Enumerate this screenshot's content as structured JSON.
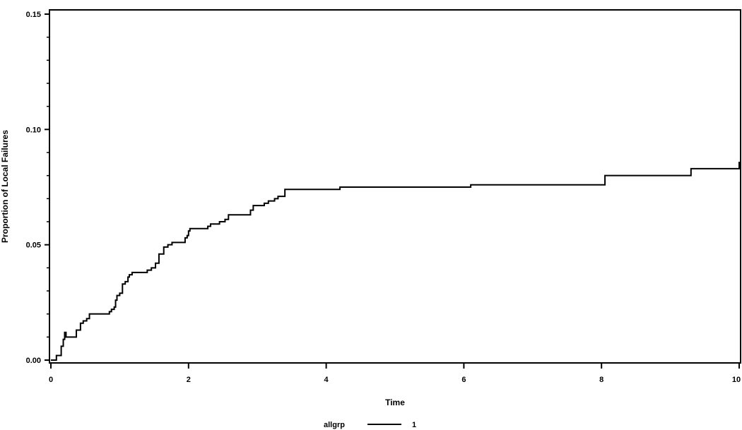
{
  "chart_data": {
    "type": "line",
    "title": "",
    "xlabel": "Time",
    "ylabel": "Proportion of Local Failures",
    "xlim": [
      0,
      10
    ],
    "ylim": [
      0,
      0.15
    ],
    "x_ticks": [
      0,
      2,
      4,
      6,
      8,
      10
    ],
    "x_tick_labels": [
      "0",
      "2",
      "4",
      "6",
      "8",
      "10"
    ],
    "y_ticks": [
      0,
      0.05,
      0.1,
      0.15
    ],
    "y_tick_labels": [
      "0.00",
      "0.05",
      "0.10",
      "0.15"
    ],
    "grid": false,
    "legend": {
      "placement": "bottom",
      "title": "allgrp",
      "entries": [
        {
          "label": "1"
        }
      ]
    },
    "series": [
      {
        "name": "1",
        "step": true,
        "color": "#000000",
        "x": [
          0,
          0.08,
          0.15,
          0.18,
          0.2,
          0.22,
          0.37,
          0.43,
          0.47,
          0.52,
          0.56,
          0.8,
          0.85,
          0.88,
          0.92,
          0.94,
          0.96,
          1.0,
          1.04,
          1.08,
          1.12,
          1.14,
          1.18,
          1.4,
          1.46,
          1.52,
          1.57,
          1.64,
          1.68,
          1.7,
          1.76,
          1.9,
          1.95,
          1.98,
          2.0,
          2.02,
          2.28,
          2.32,
          2.45,
          2.53,
          2.58,
          2.74,
          2.8,
          2.9,
          2.94,
          3.1,
          3.16,
          3.2,
          3.25,
          3.3,
          3.4,
          3.5,
          4.2,
          6.1,
          8.05,
          9.3,
          10.0
        ],
        "y": [
          0,
          0.002,
          0.006,
          0.009,
          0.012,
          0.01,
          0.013,
          0.016,
          0.017,
          0.018,
          0.02,
          0.02,
          0.021,
          0.022,
          0.023,
          0.026,
          0.028,
          0.029,
          0.033,
          0.034,
          0.036,
          0.037,
          0.038,
          0.039,
          0.04,
          0.042,
          0.046,
          0.049,
          0.049,
          0.05,
          0.051,
          0.051,
          0.053,
          0.054,
          0.056,
          0.057,
          0.058,
          0.059,
          0.06,
          0.061,
          0.063,
          0.063,
          0.063,
          0.065,
          0.067,
          0.068,
          0.069,
          0.069,
          0.07,
          0.071,
          0.074,
          0.074,
          0.075,
          0.076,
          0.08,
          0.083,
          0.086
        ]
      }
    ]
  }
}
